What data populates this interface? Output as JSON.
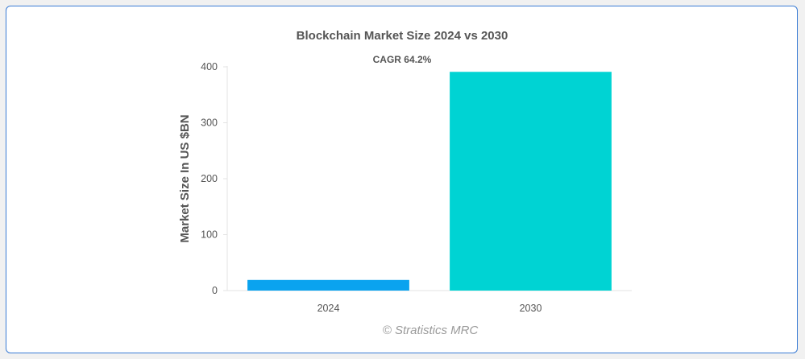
{
  "chart_data": {
    "type": "bar",
    "title": "Blockchain Market Size 2024 vs 2030",
    "annotation": "CAGR 64.2%",
    "xlabel": "",
    "ylabel": "Market Size In US $BN",
    "categories": [
      "2024",
      "2030"
    ],
    "values": [
      19,
      391
    ],
    "colors": [
      "#0aa3ef",
      "#00d3d3"
    ],
    "ylim": [
      0,
      400
    ],
    "yticks": [
      0,
      100,
      200,
      300,
      400
    ],
    "grid": false,
    "legend": "none"
  },
  "watermark": "© Stratistics MRC"
}
